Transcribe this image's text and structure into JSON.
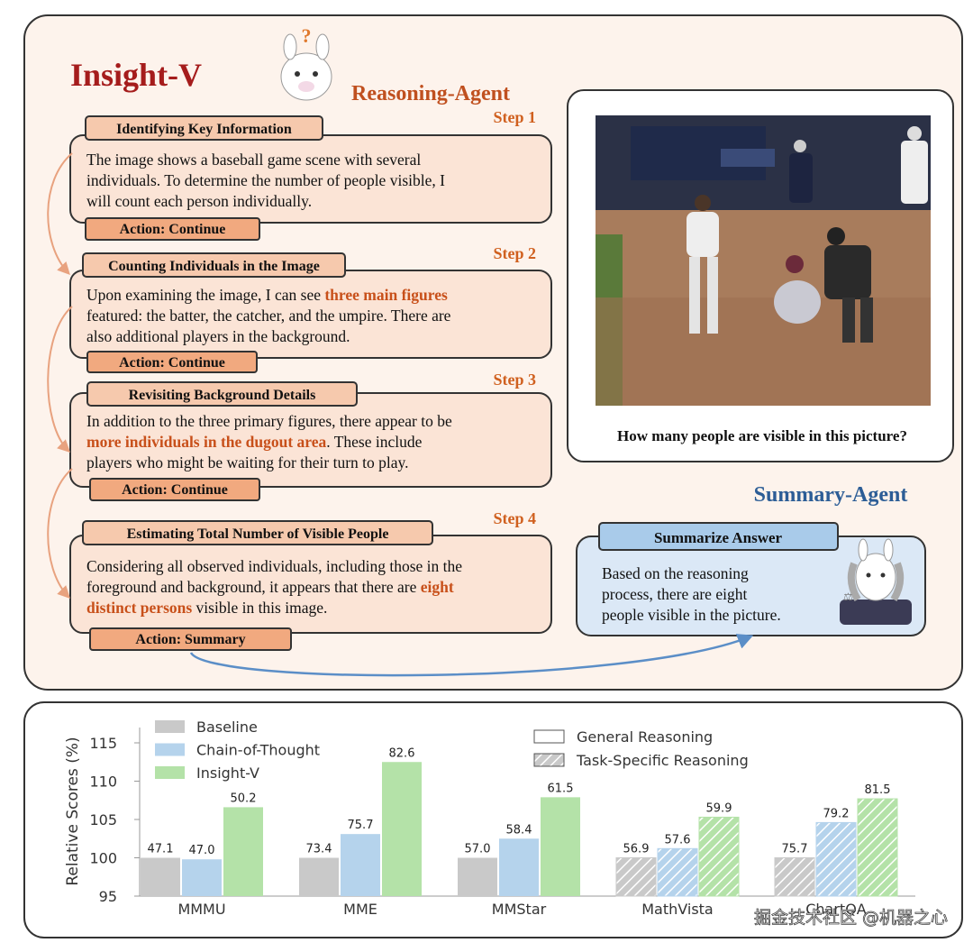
{
  "title": "Insight-V",
  "reasoning_agent": {
    "label": "Reasoning-Agent",
    "steps": [
      {
        "step": "Step 1",
        "heading": "Identifying Key Information",
        "lines": [
          [
            {
              "text": "The image shows a baseball game scene with several"
            }
          ],
          [
            {
              "text": "individuals. To determine the number of people visible, I"
            }
          ],
          [
            {
              "text": "will count each person individually."
            }
          ]
        ],
        "action": "Action: Continue"
      },
      {
        "step": "Step 2",
        "heading": "Counting Individuals in the Image",
        "lines": [
          [
            {
              "text": "Upon examining the image, I can see "
            },
            {
              "text": "three main figures",
              "em": true
            }
          ],
          [
            {
              "text": "featured: the batter, the catcher, and the umpire. There are"
            }
          ],
          [
            {
              "text": "also additional players in the background."
            }
          ]
        ],
        "action": "Action: Continue"
      },
      {
        "step": "Step 3",
        "heading": "Revisiting Background Details",
        "lines": [
          [
            {
              "text": "In addition to the three primary figures, there appear to be"
            }
          ],
          [
            {
              "text": "more individuals in the dugout area",
              "em": true
            },
            {
              "text": ". These include"
            }
          ],
          [
            {
              "text": "players who might be waiting for their turn to play."
            }
          ]
        ],
        "action": "Action: Continue"
      },
      {
        "step": "Step 4",
        "heading": "Estimating Total Number of Visible People",
        "lines": [
          [
            {
              "text": "Considering all observed individuals, including those in the"
            }
          ],
          [
            {
              "text": "foreground and background, it appears that there are "
            },
            {
              "text": "eight",
              "em": true
            }
          ],
          [
            {
              "text": "distinct persons",
              "em": true
            },
            {
              "text": " visible in this image."
            }
          ]
        ],
        "action": "Action: Summary"
      }
    ]
  },
  "image": {
    "question": "How many people are visible in this picture?"
  },
  "summary_agent": {
    "label": "Summary-Agent",
    "heading": "Summarize Answer",
    "lines": [
      "Based on  the reasoning",
      "process, there are eight",
      "people visible in the picture."
    ]
  },
  "watermark": "掘金技术社区 @机器之心",
  "chart_data": {
    "type": "bar",
    "y_label": "Relative Scores (%)",
    "categories": [
      "MMMU",
      "MME",
      "MMStar",
      "MathVista",
      "ChartQA"
    ],
    "hatched": [
      false,
      false,
      false,
      true,
      true
    ],
    "hatch_legend": [
      "General Reasoning",
      "Task-Specific Reasoning"
    ],
    "series": [
      {
        "name": "Baseline",
        "color": "#c9c9c9",
        "values": [
          100,
          100,
          100,
          100,
          100
        ],
        "score_labels": [
          "47.1",
          "73.4",
          "57.0",
          "56.9",
          "75.7"
        ]
      },
      {
        "name": "Chain-of-Thought",
        "color": "#b5d3ec",
        "values": [
          99.8,
          103.1,
          102.5,
          101.2,
          104.6
        ],
        "score_labels": [
          "47.0",
          "75.7",
          "58.4",
          "57.6",
          "79.2"
        ]
      },
      {
        "name": "Insight-V",
        "color": "#b4e2a8",
        "values": [
          106.6,
          112.5,
          107.9,
          105.3,
          107.7
        ],
        "score_labels": [
          "50.2",
          "82.6",
          "61.5",
          "59.9",
          "81.5"
        ]
      }
    ],
    "ylim": [
      95,
      117
    ],
    "yticks": [
      95,
      100,
      105,
      110,
      115
    ],
    "grid": false,
    "legend": "upper left"
  }
}
